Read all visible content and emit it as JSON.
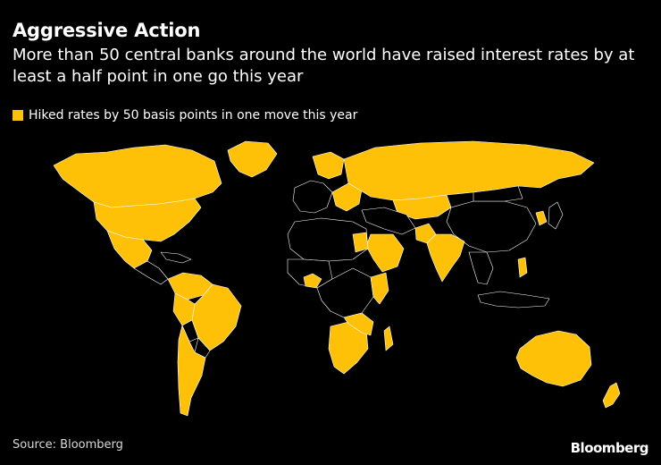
{
  "header": {
    "title": "Aggressive Action",
    "subtitle": "More than 50 central banks around the world have raised interest rates by at least a half point in one go this year"
  },
  "legend": {
    "label": "Hiked rates by 50 basis points in one move this year",
    "color": "#FFC107"
  },
  "map": {
    "hiked_color": "#FFC107",
    "other_color": "#000000",
    "border_color": "#FFFFFF"
  },
  "footer": {
    "source": "Source: Bloomberg",
    "brand": "Bloomberg"
  }
}
